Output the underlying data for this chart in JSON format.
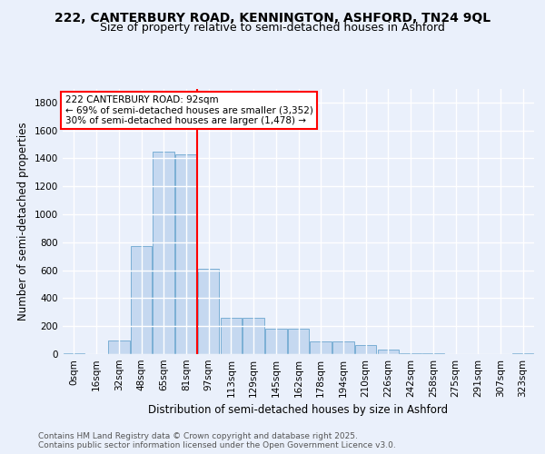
{
  "title_line1": "222, CANTERBURY ROAD, KENNINGTON, ASHFORD, TN24 9QL",
  "title_line2": "Size of property relative to semi-detached houses in Ashford",
  "xlabel": "Distribution of semi-detached houses by size in Ashford",
  "ylabel": "Number of semi-detached properties",
  "categories": [
    "0sqm",
    "16sqm",
    "32sqm",
    "48sqm",
    "65sqm",
    "81sqm",
    "97sqm",
    "113sqm",
    "129sqm",
    "145sqm",
    "162sqm",
    "178sqm",
    "194sqm",
    "210sqm",
    "226sqm",
    "242sqm",
    "258sqm",
    "275sqm",
    "291sqm",
    "307sqm",
    "323sqm"
  ],
  "values": [
    5,
    0,
    100,
    770,
    1450,
    1430,
    610,
    260,
    260,
    185,
    185,
    90,
    90,
    65,
    30,
    5,
    5,
    0,
    0,
    0,
    5
  ],
  "bar_color": "#c5d8f0",
  "bar_edge_color": "#7bafd4",
  "annotation_text": "222 CANTERBURY ROAD: 92sqm\n← 69% of semi-detached houses are smaller (3,352)\n30% of semi-detached houses are larger (1,478) →",
  "ylim": [
    0,
    1900
  ],
  "yticks": [
    0,
    200,
    400,
    600,
    800,
    1000,
    1200,
    1400,
    1600,
    1800
  ],
  "footer_text": "Contains HM Land Registry data © Crown copyright and database right 2025.\nContains public sector information licensed under the Open Government Licence v3.0.",
  "background_color": "#eaf0fb",
  "grid_color": "#ffffff",
  "title_fontsize": 10,
  "subtitle_fontsize": 9,
  "axis_label_fontsize": 8.5,
  "tick_fontsize": 7.5,
  "annotation_fontsize": 7.5,
  "footer_fontsize": 6.5
}
